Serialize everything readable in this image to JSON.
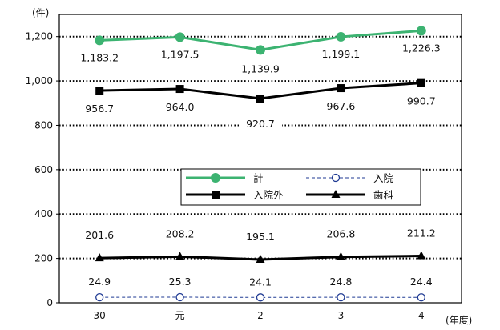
{
  "chart_data": {
    "type": "line",
    "unit_label": "(件)",
    "x_unit_label": "(年度)",
    "categories": [
      "30",
      "元",
      "2",
      "3",
      "4"
    ],
    "yticks": [
      "0",
      "200",
      "400",
      "600",
      "800",
      "1,000",
      "1,200"
    ],
    "ylim": [
      0,
      1300
    ],
    "grid": "horizontal-dotted",
    "legend_position": "center-right",
    "series": [
      {
        "name": "計",
        "values": [
          1183.2,
          1197.5,
          1139.9,
          1199.1,
          1226.3
        ],
        "labels": [
          "1,183.2",
          "1,197.5",
          "1,139.9",
          "1,199.1",
          "1,226.3"
        ],
        "color": "#3cb371",
        "marker": "filled-circle",
        "line_style": "solid"
      },
      {
        "name": "入院",
        "values": [
          24.9,
          25.3,
          24.1,
          24.8,
          24.4
        ],
        "labels": [
          "24.9",
          "25.3",
          "24.1",
          "24.8",
          "24.4"
        ],
        "color": "#1f3a93",
        "marker": "open-circle",
        "line_style": "dashed"
      },
      {
        "name": "入院外",
        "values": [
          956.7,
          964.0,
          920.7,
          967.6,
          990.7
        ],
        "labels": [
          "956.7",
          "964.0",
          "920.7",
          "967.6",
          "990.7"
        ],
        "color": "#000000",
        "marker": "filled-square",
        "line_style": "solid"
      },
      {
        "name": "歯科",
        "values": [
          201.6,
          208.2,
          195.1,
          206.8,
          211.2
        ],
        "labels": [
          "201.6",
          "208.2",
          "195.1",
          "206.8",
          "211.2"
        ],
        "color": "#000000",
        "marker": "filled-triangle",
        "line_style": "solid"
      }
    ]
  }
}
